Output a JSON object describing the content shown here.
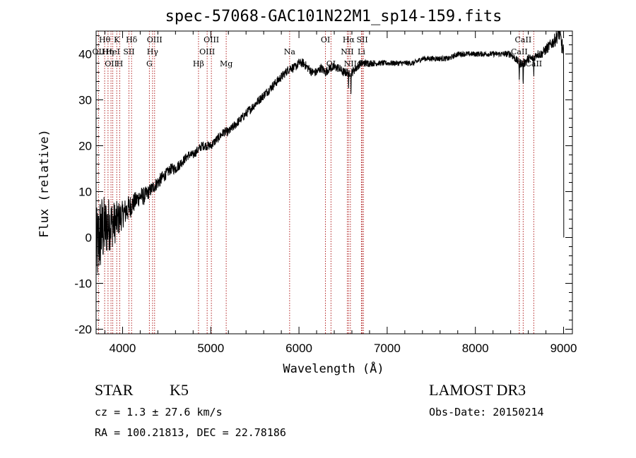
{
  "chart_data": {
    "type": "line",
    "title": "spec-57068-GAC101N22M1_sp14-159.fits",
    "xlabel": "Wavelength (Å)",
    "ylabel": "Flux (relative)",
    "xlim": [
      3700,
      9100
    ],
    "ylim": [
      -21,
      45
    ],
    "x_ticks": [
      4000,
      5000,
      6000,
      7000,
      8000,
      9000
    ],
    "y_ticks": [
      -20,
      -10,
      0,
      10,
      20,
      30,
      40
    ],
    "grid": false,
    "series": [
      {
        "x": [
          3700,
          3750,
          3800,
          3850,
          3900,
          3950,
          4000,
          4050,
          4100,
          4150,
          4200,
          4250,
          4300,
          4350,
          4400,
          4450,
          4500,
          4550,
          4600,
          4650,
          4700,
          4750,
          4800,
          4850,
          4900,
          4950,
          5000,
          5050,
          5100,
          5150,
          5200,
          5250,
          5300,
          5350,
          5400,
          5450,
          5500,
          5550,
          5600,
          5650,
          5700,
          5750,
          5800,
          5850,
          5900,
          5950,
          6000,
          6050,
          6100,
          6150,
          6200,
          6250,
          6300,
          6350,
          6400,
          6450,
          6500,
          6550,
          6600,
          6650,
          6700,
          6750,
          6800,
          6900,
          7000,
          7100,
          7200,
          7300,
          7400,
          7500,
          7600,
          7700,
          7800,
          7900,
          8000,
          8100,
          8200,
          8300,
          8400,
          8450,
          8500,
          8550,
          8600,
          8650,
          8700,
          8750,
          8800,
          8850,
          8900,
          8950,
          8980,
          9000
        ],
        "y": [
          -3,
          1,
          2,
          3,
          3,
          4,
          5,
          6,
          7,
          8,
          9,
          9,
          10,
          11,
          12,
          13,
          14,
          15,
          15,
          16,
          17,
          18,
          18,
          19,
          20,
          20,
          20,
          21,
          22,
          23,
          23,
          24,
          25,
          26,
          27,
          28,
          29,
          30,
          31,
          32,
          33,
          34,
          35,
          36,
          37,
          37,
          38,
          38,
          37,
          36,
          36,
          37,
          36,
          37,
          37,
          37,
          36,
          36,
          36,
          37,
          38,
          38,
          38,
          38,
          38,
          38,
          38,
          38,
          39,
          39,
          39,
          39,
          40,
          40,
          40,
          40,
          40,
          40,
          40,
          39,
          38,
          38,
          39,
          39,
          40,
          40,
          41,
          42,
          43,
          45,
          42,
          40
        ],
        "noise": [
          9,
          9,
          7,
          6,
          5,
          4,
          3,
          3,
          2.5,
          2,
          2,
          2,
          1.5,
          1.5,
          1.5,
          1.5,
          1.2,
          1.2,
          1.2,
          1.2,
          1,
          1,
          1,
          1,
          1,
          1,
          1,
          1,
          1,
          1,
          1,
          1,
          1,
          1,
          1,
          1,
          1,
          1,
          1,
          1,
          1,
          1,
          1,
          1,
          1,
          1,
          1,
          1,
          1,
          1,
          1,
          1,
          1,
          1,
          1,
          1,
          1,
          1,
          1,
          1,
          0.8,
          0.8,
          0.8,
          0.6,
          0.6,
          0.6,
          0.6,
          0.6,
          0.6,
          0.6,
          0.6,
          0.6,
          0.6,
          0.6,
          0.6,
          0.6,
          0.6,
          0.6,
          0.8,
          0.8,
          1,
          1,
          1,
          1,
          1,
          1,
          1.2,
          1.2,
          1.5,
          2,
          2,
          2
        ],
        "dips": [
          {
            "x": 6563,
            "depth": 5
          },
          {
            "x": 6590,
            "depth": 4
          },
          {
            "x": 8498,
            "depth": 4
          },
          {
            "x": 8542,
            "depth": 6
          },
          {
            "x": 8662,
            "depth": 5
          }
        ]
      }
    ],
    "line_markers": [
      {
        "wavelength": 3727,
        "row": 2,
        "label": "OII"
      },
      {
        "wavelength": 3797,
        "row": 1,
        "label": "Hθ"
      },
      {
        "wavelength": 3835,
        "row": 2,
        "label": "Hη"
      },
      {
        "wavelength": 3869,
        "row": 3,
        "label": "OII"
      },
      {
        "wavelength": 3889,
        "row": 2,
        "label": "HeI"
      },
      {
        "wavelength": 3934,
        "row": 1,
        "label": "K"
      },
      {
        "wavelength": 3968,
        "row": 3,
        "label": "H"
      },
      {
        "wavelength": 4072,
        "row": 2,
        "label": "SII"
      },
      {
        "wavelength": 4102,
        "row": 1,
        "label": "Hδ"
      },
      {
        "wavelength": 4304,
        "row": 3,
        "label": "G"
      },
      {
        "wavelength": 4340,
        "row": 2,
        "label": "Hγ"
      },
      {
        "wavelength": 4363,
        "row": 1,
        "label": "OIII"
      },
      {
        "wavelength": 4861,
        "row": 3,
        "label": "Hβ"
      },
      {
        "wavelength": 4959,
        "row": 2,
        "label": "OIII"
      },
      {
        "wavelength": 5007,
        "row": 1,
        "label": "OIII"
      },
      {
        "wavelength": 5175,
        "row": 3,
        "label": "Mg"
      },
      {
        "wavelength": 5894,
        "row": 2,
        "label": "Na"
      },
      {
        "wavelength": 6300,
        "row": 1,
        "label": "OI"
      },
      {
        "wavelength": 6363,
        "row": 3,
        "label": "OI"
      },
      {
        "wavelength": 6548,
        "row": 2,
        "label": "NII"
      },
      {
        "wavelength": 6563,
        "row": 1,
        "label": "Hα"
      },
      {
        "wavelength": 6583,
        "row": 3,
        "label": "NII"
      },
      {
        "wavelength": 6708,
        "row": 2,
        "label": "Li"
      },
      {
        "wavelength": 6717,
        "row": 1,
        "label": "SII"
      },
      {
        "wavelength": 6731,
        "row": 3,
        "label": "SII"
      },
      {
        "wavelength": 8498,
        "row": 2,
        "label": "CaII"
      },
      {
        "wavelength": 8542,
        "row": 1,
        "label": "CaII"
      },
      {
        "wavelength": 8662,
        "row": 3,
        "label": "CaII"
      }
    ]
  },
  "info": {
    "object_class": "STAR",
    "subclass": "K5",
    "survey": "LAMOST DR3",
    "cz": "cz = 1.3 ± 27.6 km/s",
    "obs_date": "Obs-Date: 20150214",
    "coords": "RA = 100.21813, DEC =  22.78186"
  },
  "colors": {
    "spectrum": "#000000",
    "line_marker": "#b22222",
    "axes": "#000000"
  }
}
